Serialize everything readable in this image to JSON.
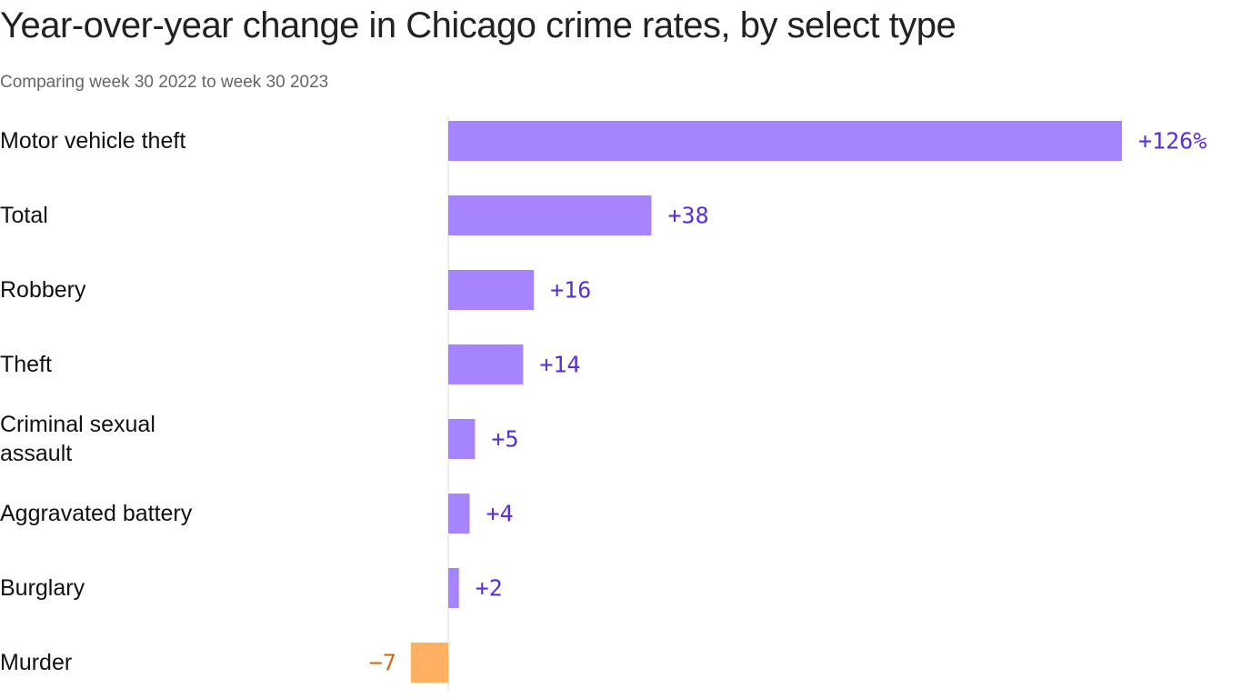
{
  "title": "Year-over-year change in Chicago crime rates, by select type",
  "subtitle": "Comparing week 30 2022 to week 30 2023",
  "colors": {
    "positive": "#a684ff",
    "negative": "#ffb060",
    "positive_text": "#5b2fd6",
    "negative_text": "#d06a10",
    "axis": "#dddddd"
  },
  "chart_data": {
    "type": "bar",
    "orientation": "horizontal",
    "title": "Year-over-year change in Chicago crime rates, by select type",
    "subtitle": "Comparing week 30 2022 to week 30 2023",
    "categories": [
      "Motor vehicle theft",
      "Total",
      "Robbery",
      "Theft",
      "Criminal sexual assault",
      "Aggravated battery",
      "Burglary",
      "Murder"
    ],
    "values": [
      126,
      38,
      16,
      14,
      5,
      4,
      2,
      -7
    ],
    "value_labels": [
      "+126%",
      "+38",
      "+16",
      "+14",
      "+5",
      "+4",
      "+2",
      "−7"
    ],
    "unit": "%",
    "xlabel": "",
    "ylabel": "",
    "grid": false,
    "legend": "none"
  }
}
